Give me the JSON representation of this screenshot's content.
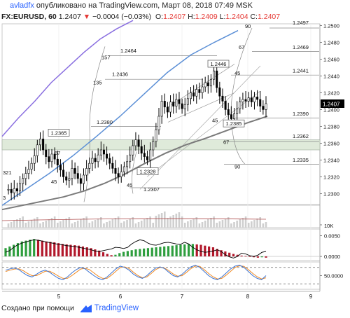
{
  "header": {
    "author": "avladfx",
    "published_text": "опубликовано на TradingView.com, Март 08, 2018 07:49 MSK",
    "symbol": "FX:EURUSD, 60",
    "last": "1.2407",
    "change_arrow": "▼",
    "change": "−0.0004 (−0.03%)",
    "o_label": "O:",
    "o_val": "1.2407",
    "h_label": "H:",
    "h_val": "1.2409",
    "l_label": "L:",
    "l_val": "1.2404",
    "c_label": "C:",
    "c_val": "1.2407"
  },
  "footer": {
    "created_text": "Создано при помощи",
    "brand": "TradingView"
  },
  "colors": {
    "candle": "#000000",
    "ma_blue": "#5b8fd6",
    "ma_purple": "#8a6fe0",
    "ma_gray": "#7a7a7a",
    "band": "#dfeada",
    "macd_red": "#b2182b",
    "macd_green": "#2e9e3e",
    "stoch_orange": "#f08a24",
    "stoch_blue": "#3b73d1",
    "last_badge": "#000000"
  },
  "chart_data": {
    "type": "candlestick",
    "x_ticks": [
      "5",
      "6",
      "7",
      "8",
      "9"
    ],
    "price_axis": {
      "ticks": [
        "1.2500",
        "1.2480",
        "1.2460",
        "1.2440",
        "1.2420",
        "1.2400",
        "1.2380",
        "1.2360",
        "1.2340",
        "1.2320",
        "1.2300"
      ],
      "range": [
        1.2287,
        1.2502
      ],
      "last_price": 1.2407
    },
    "close_series": [
      1.2305,
      1.2301,
      1.2306,
      1.2303,
      1.2312,
      1.2318,
      1.2324,
      1.2329,
      1.2336,
      1.2345,
      1.2358,
      1.2365,
      1.2352,
      1.2344,
      1.2338,
      1.2347,
      1.2341,
      1.2334,
      1.2328,
      1.232,
      1.2316,
      1.2318,
      1.233,
      1.2324,
      1.2318,
      1.2312,
      1.2322,
      1.233,
      1.2336,
      1.2342,
      1.2338,
      1.2346,
      1.2352,
      1.2347,
      1.2342,
      1.2336,
      1.233,
      1.2324,
      1.232,
      1.2326,
      1.2332,
      1.2338,
      1.2346,
      1.2357,
      1.2364,
      1.2356,
      1.2348,
      1.2344,
      1.234,
      1.2352,
      1.2362,
      1.2376,
      1.2392,
      1.241,
      1.2403,
      1.2397,
      1.2409,
      1.2404,
      1.2412,
      1.2407,
      1.2401,
      1.2406,
      1.2413,
      1.242,
      1.2416,
      1.2424,
      1.242,
      1.2427,
      1.2432,
      1.2428,
      1.2436,
      1.2446,
      1.2426,
      1.2416,
      1.241,
      1.24,
      1.2394,
      1.2389,
      1.2395,
      1.2401,
      1.2409,
      1.2412,
      1.241,
      1.2414,
      1.2409,
      1.2415,
      1.2412,
      1.2404,
      1.24,
      1.2407
    ],
    "moving_averages": [
      {
        "color": "purple",
        "y": [
          1.2368,
          1.239,
          1.241,
          1.2432,
          1.245,
          1.2468,
          1.2484,
          1.2496,
          1.2506
        ]
      },
      {
        "color": "blue",
        "y": [
          1.2286,
          1.2305,
          1.2324,
          1.2345,
          1.2368,
          1.2392,
          1.2418,
          1.2444,
          1.2465,
          1.248,
          1.2494
        ]
      },
      {
        "color": "gray",
        "y": [
          1.2281,
          1.2286,
          1.2291,
          1.2296,
          1.2303,
          1.2312,
          1.2323,
          1.2336,
          1.2348,
          1.2358,
          1.2366,
          1.2375,
          1.2384,
          1.2392
        ]
      }
    ],
    "highlight_band": {
      "from": 1.2352,
      "to": 1.2364
    },
    "price_labels": [
      {
        "text": "1.2365",
        "boxed": true
      },
      {
        "text": "1.2328",
        "boxed": true
      },
      {
        "text": "1.2446",
        "boxed": true
      },
      {
        "text": "1.2385",
        "boxed": true
      },
      {
        "text": "1.2464",
        "boxed": false
      },
      {
        "text": "1.2436",
        "boxed": false
      },
      {
        "text": "1.2380",
        "boxed": false
      },
      {
        "text": "1.2307",
        "boxed": false
      },
      {
        "text": "1.2497",
        "boxed": false
      },
      {
        "text": "1.2469",
        "boxed": false
      },
      {
        "text": "1.2441",
        "boxed": false
      },
      {
        "text": "1.2390",
        "boxed": false
      },
      {
        "text": "1.2362",
        "boxed": false
      },
      {
        "text": "1.2335",
        "boxed": false
      },
      {
        "text": "321",
        "boxed": false
      },
      {
        "text": "3",
        "boxed": false
      }
    ],
    "angle_labels": [
      "90",
      "157",
      "135",
      "67",
      "45",
      "45",
      "67",
      "45",
      "67",
      "90",
      "45"
    ],
    "volume": {
      "axis_label": "10K"
    },
    "macd": {
      "ticks": [
        "0.0050",
        "0.0000"
      ],
      "range": [
        -0.001,
        0.0066
      ],
      "histogram": [
        0.002,
        0.0024,
        0.0028,
        0.0032,
        0.0036,
        0.0038,
        0.004,
        0.0042,
        0.004,
        0.0038,
        0.0036,
        0.0035,
        0.0034,
        0.0032,
        0.003,
        0.0029,
        0.0028,
        0.0027,
        0.0026,
        0.0024,
        0.0022,
        0.002,
        0.0017,
        0.0014,
        0.001,
        0.0006,
        0.0003,
        0.0004,
        0.0008,
        0.0011,
        0.0013,
        0.0015,
        0.0017,
        0.0018,
        0.0019,
        0.002,
        0.0021,
        0.0022,
        0.0023,
        0.0024,
        0.0025,
        0.0026,
        0.0027,
        0.0028,
        0.0029,
        0.003,
        0.003,
        0.0029,
        0.0028,
        0.0026,
        0.0024,
        0.0022,
        0.0018,
        0.0015,
        0.0012,
        0.0009,
        0.0006,
        0.0004,
        0.0002,
        0.0001,
        -0.0001,
        -0.0002,
        -0.0003,
        -0.0002,
        -0.0003
      ],
      "signal": [
        0.001,
        0.0014,
        0.0022,
        0.0028,
        0.0032,
        0.0035,
        0.0038,
        0.004,
        0.0039,
        0.0037,
        0.0035,
        0.0033,
        0.0031,
        0.0029,
        0.0028,
        0.0026,
        0.0025,
        0.0024,
        0.0022,
        0.002,
        0.0018,
        0.0016,
        0.0013,
        0.0012,
        0.0014,
        0.0016,
        0.0018,
        0.0022,
        0.0021,
        0.0019,
        0.0022,
        0.003,
        0.0036,
        0.004,
        0.0038,
        0.0032,
        0.0028,
        0.0027,
        0.003,
        0.0033,
        0.0034,
        0.0032,
        0.003,
        0.0029,
        0.0034,
        0.003,
        0.0022,
        0.0016,
        0.0012,
        0.001,
        0.0011,
        0.0013,
        0.0016,
        0.0012,
        0.0004,
        -0.0001,
        -0.0004,
        0.0,
        0.0008,
        0.0006,
        0.0002,
        0.0,
        0.0003,
        0.001,
        0.0012
      ]
    },
    "stochastic": {
      "ticks": [
        "50.0000"
      ],
      "range": [
        0,
        100
      ],
      "k": [
        70,
        75,
        78,
        72,
        60,
        50,
        45,
        55,
        65,
        70,
        62,
        50,
        40,
        35,
        45,
        60,
        72,
        80,
        75,
        62,
        50,
        40,
        35,
        45,
        60,
        75,
        85,
        80,
        70,
        55,
        45,
        40,
        50,
        65,
        78,
        82,
        76,
        62,
        50,
        45,
        55,
        70,
        82,
        88,
        80,
        65,
        50,
        40,
        35,
        45,
        60,
        75,
        85,
        88,
        80,
        65,
        50,
        40,
        35,
        50
      ],
      "d": [
        65,
        70,
        74,
        75,
        68,
        58,
        50,
        50,
        58,
        66,
        66,
        58,
        48,
        40,
        40,
        50,
        62,
        74,
        77,
        72,
        60,
        48,
        40,
        40,
        52,
        66,
        80,
        82,
        76,
        62,
        50,
        42,
        45,
        58,
        72,
        80,
        78,
        68,
        56,
        48,
        50,
        62,
        76,
        85,
        84,
        72,
        58,
        46,
        38,
        40,
        52,
        66,
        80,
        86,
        84,
        72,
        58,
        46,
        38,
        42
      ]
    }
  }
}
